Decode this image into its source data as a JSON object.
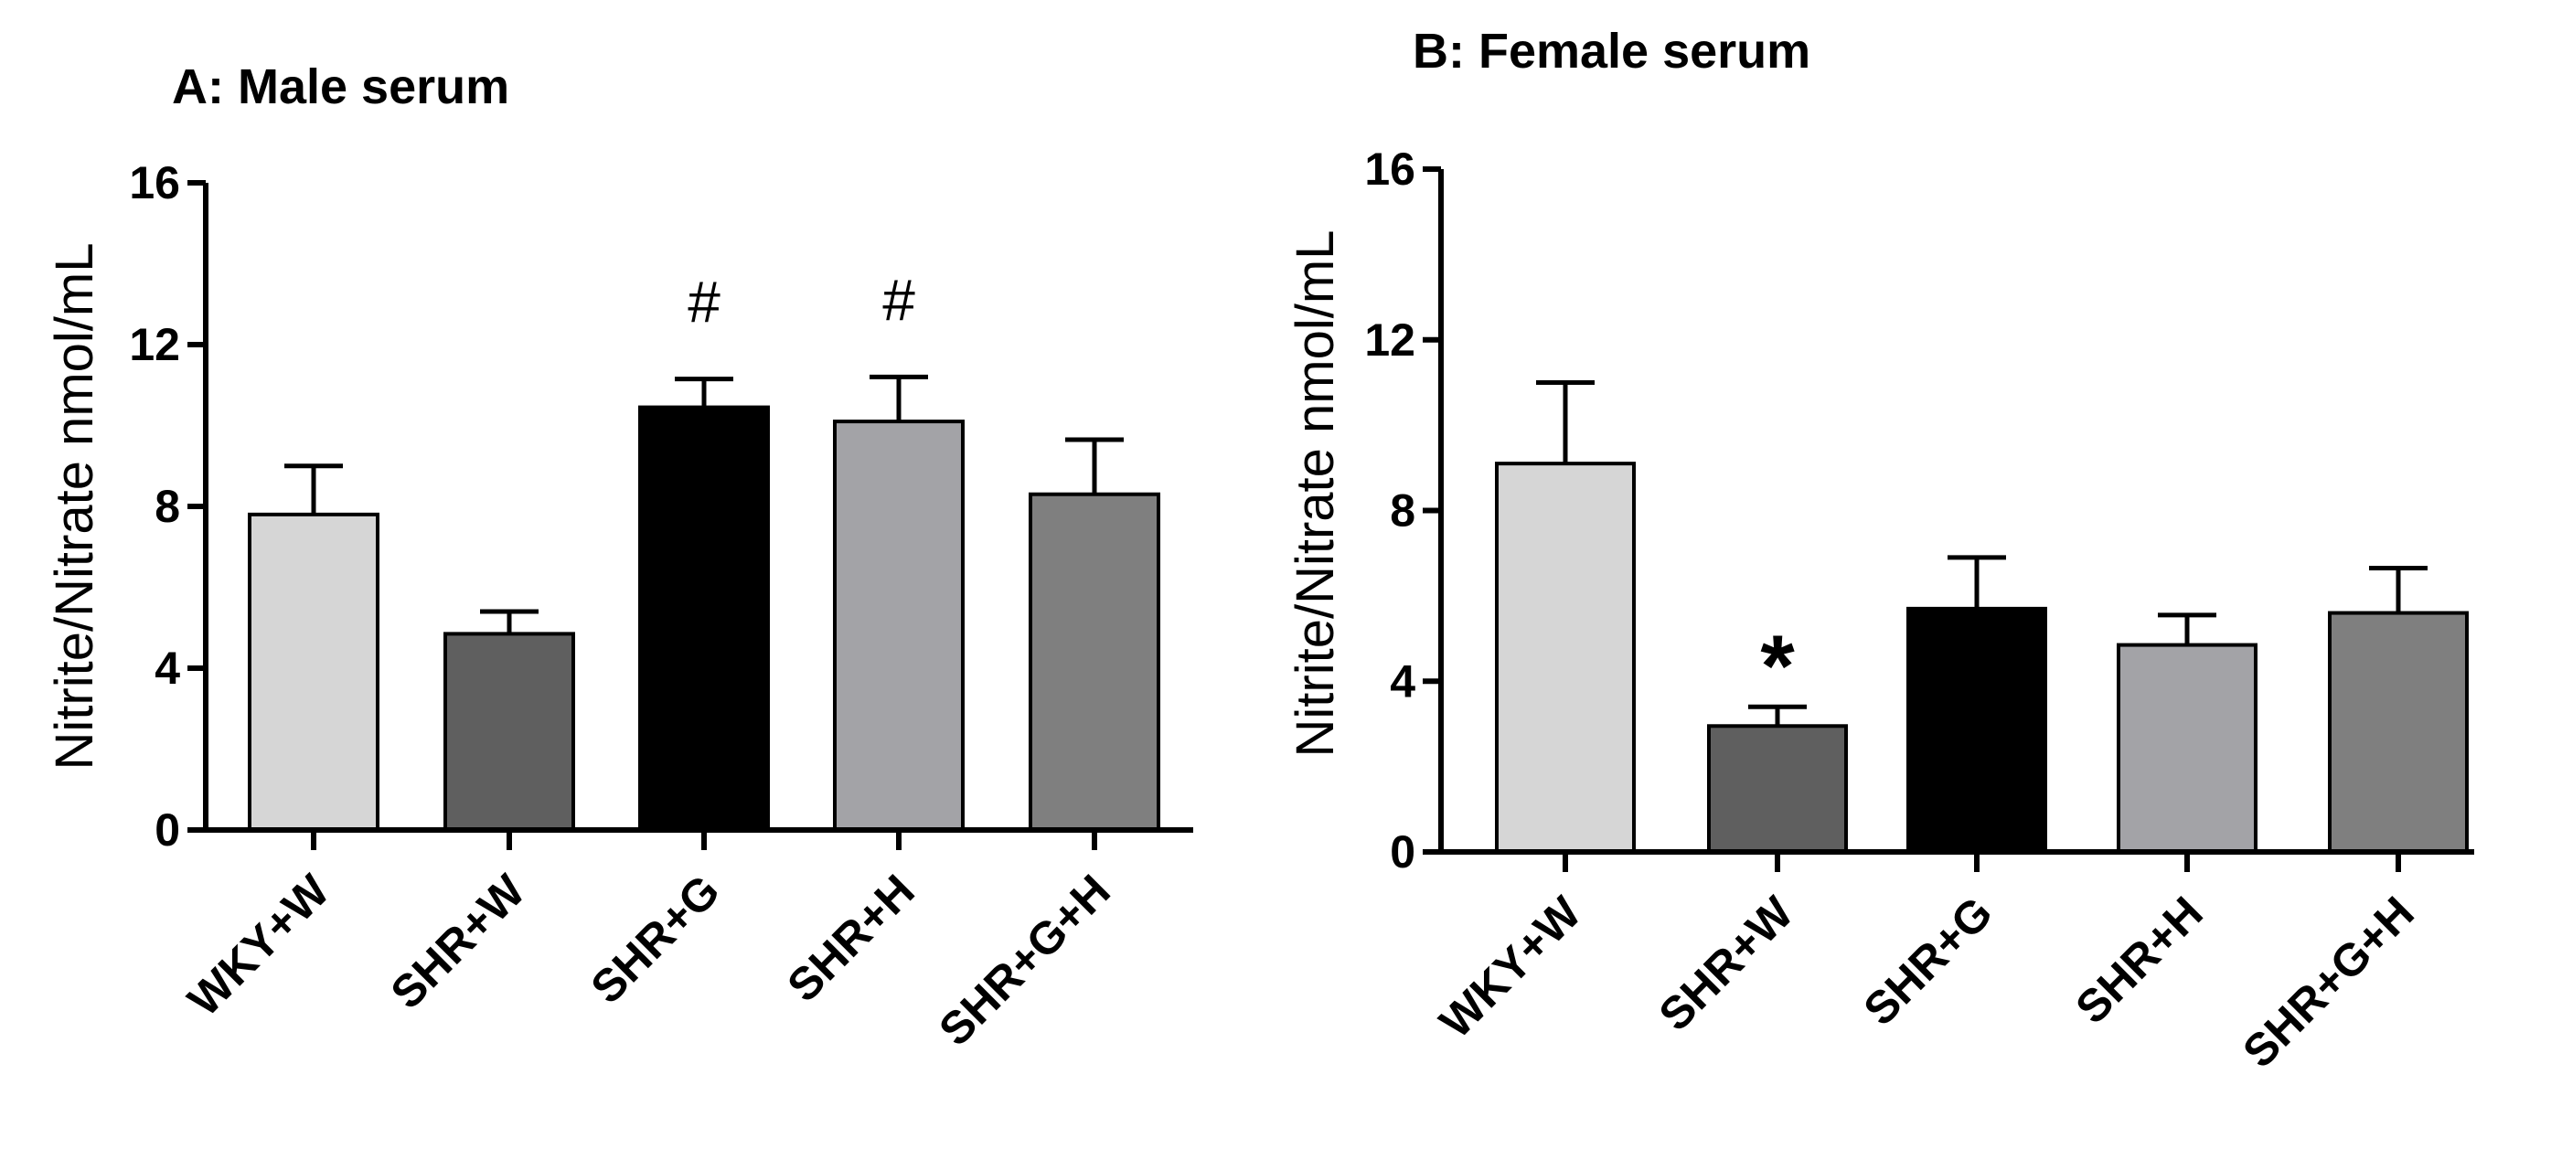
{
  "chart_data": [
    {
      "type": "bar",
      "title": "A: Male serum",
      "ylabel": "Nitrite/Nitrate nmol/mL",
      "xlabel": "",
      "ylim": [
        0,
        16
      ],
      "yticks": [
        "0",
        "4",
        "8",
        "12",
        "16"
      ],
      "categories": [
        "WKY+W",
        "SHR+W",
        "SHR+G",
        "SHR+H",
        "SHR+G+H"
      ],
      "values": [
        7.8,
        4.85,
        10.45,
        10.1,
        8.3
      ],
      "errors": [
        1.2,
        0.55,
        0.7,
        1.1,
        1.35
      ],
      "colors": [
        "#d6d6d6",
        "#5f5f5f",
        "#000000",
        "#a3a3a7",
        "#7f7f7f"
      ],
      "annotations": [
        "",
        "",
        "#",
        "#",
        ""
      ],
      "grid": false,
      "legend": "none"
    },
    {
      "type": "bar",
      "title": "B: Female  serum",
      "ylabel": "Nitrite/Nitrate nmol/mL",
      "xlabel": "",
      "ylim": [
        0,
        16
      ],
      "yticks": [
        "0",
        "4",
        "8",
        "12",
        "16"
      ],
      "categories": [
        "WKY+W",
        "SHR+W",
        "SHR+G",
        "SHR+H",
        "SHR+G+H"
      ],
      "values": [
        9.1,
        2.95,
        5.7,
        4.85,
        5.6
      ],
      "errors": [
        1.9,
        0.45,
        1.2,
        0.7,
        1.05
      ],
      "colors": [
        "#d6d6d6",
        "#5f5f5f",
        "#000000",
        "#a3a3a7",
        "#7f7f7f"
      ],
      "annotations": [
        "",
        "*",
        "",
        "",
        ""
      ],
      "grid": false,
      "legend": "none"
    }
  ]
}
